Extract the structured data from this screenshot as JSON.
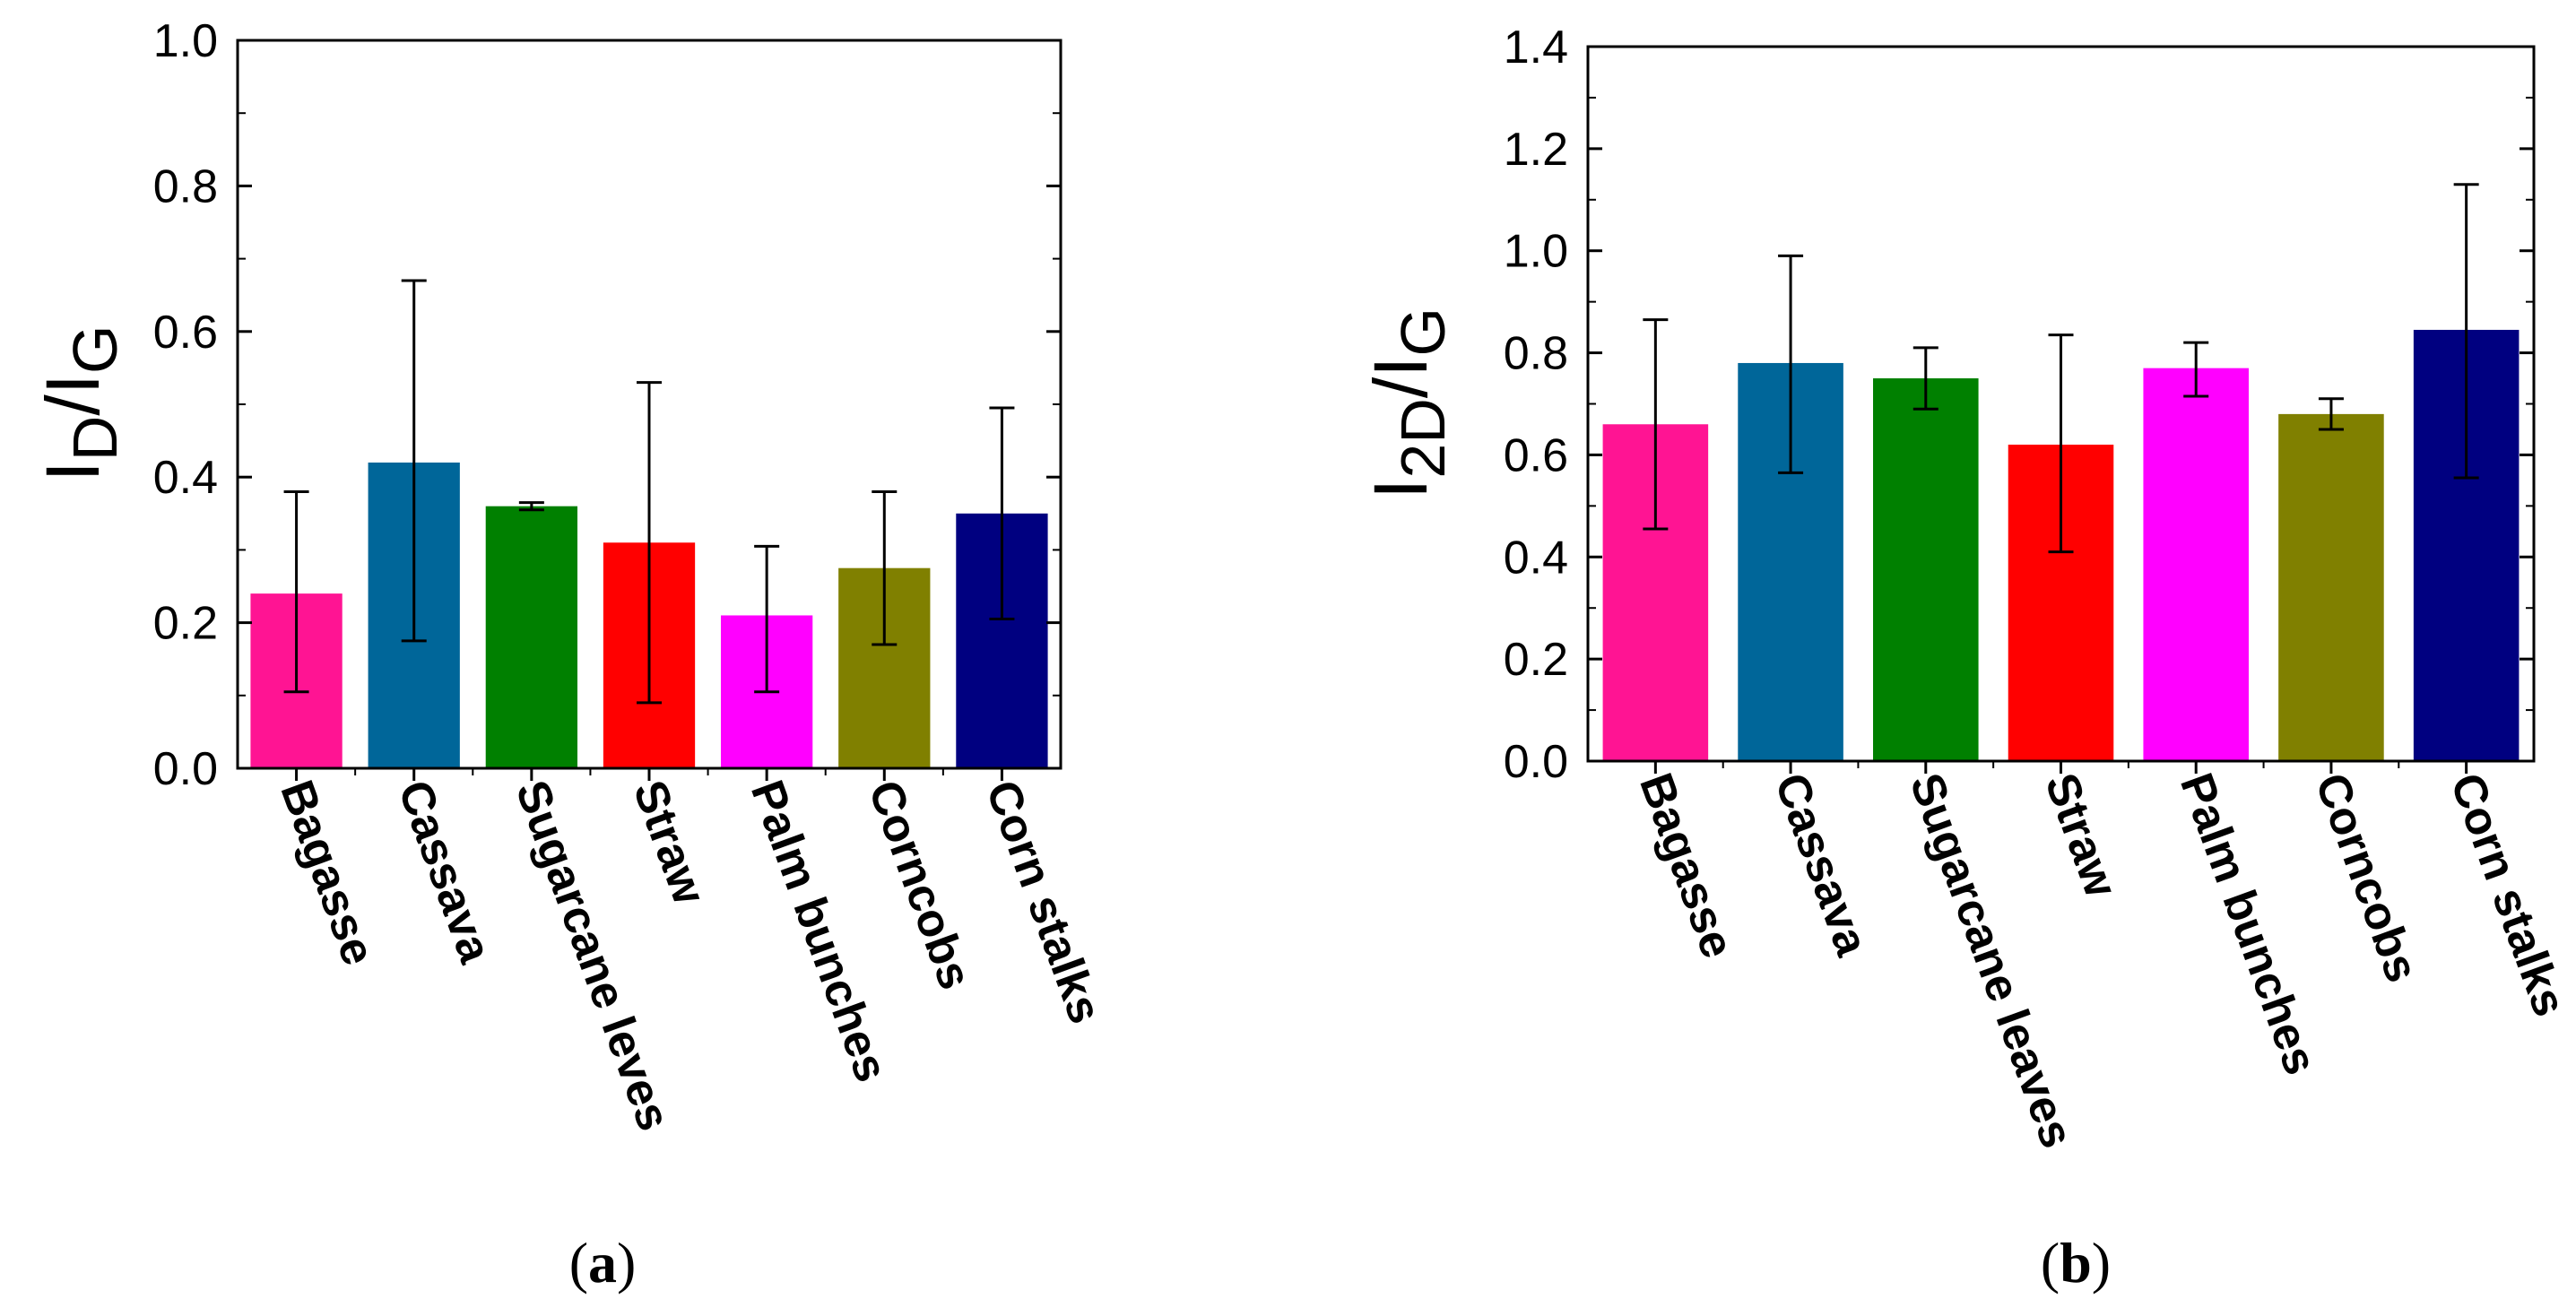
{
  "chart_data": [
    {
      "type": "bar",
      "panel_label": {
        "open": "(",
        "letter": "a",
        "close": ")"
      },
      "ylabel": {
        "main1": "I",
        "sub1": "D",
        "slash": "/",
        "main2": "I",
        "sub2": "G"
      },
      "xlabel": "",
      "ylim": [
        0,
        1.0
      ],
      "yticks": [
        "0.0",
        "0.2",
        "0.4",
        "0.6",
        "0.8",
        "1.0"
      ],
      "ytick_values": [
        0,
        0.2,
        0.4,
        0.6,
        0.8,
        1.0
      ],
      "grid": false,
      "categories": [
        "Bagasse",
        "Cassava",
        "Sugarcane leves",
        "Straw",
        "Palm bunches",
        "Corncobs",
        "Corn stalks"
      ],
      "values": [
        0.24,
        0.42,
        0.36,
        0.31,
        0.21,
        0.275,
        0.35
      ],
      "error_low": [
        0.105,
        0.175,
        0.355,
        0.09,
        0.105,
        0.17,
        0.205
      ],
      "error_high": [
        0.38,
        0.67,
        0.365,
        0.53,
        0.305,
        0.38,
        0.495
      ],
      "colors": [
        "#ff1493",
        "#006699",
        "#008000",
        "#ff0000",
        "#ff00ff",
        "#808000",
        "#000080"
      ]
    },
    {
      "type": "bar",
      "panel_label": {
        "open": "(",
        "letter": "b",
        "close": ")"
      },
      "ylabel": {
        "main1": "I",
        "sub1": "2D",
        "slash": "/",
        "main2": "I",
        "sub2": "G"
      },
      "xlabel": "",
      "ylim": [
        0,
        1.4
      ],
      "yticks": [
        "0.0",
        "0.2",
        "0.4",
        "0.6",
        "0.8",
        "1.0",
        "1.2",
        "1.4"
      ],
      "ytick_values": [
        0,
        0.2,
        0.4,
        0.6,
        0.8,
        1.0,
        1.2,
        1.4
      ],
      "grid": false,
      "categories": [
        "Bagasse",
        "Cassava",
        "Sugarcane leaves",
        "Straw",
        "Palm bunches",
        "Corncobs",
        "Corn stalks"
      ],
      "values": [
        0.66,
        0.78,
        0.75,
        0.62,
        0.77,
        0.68,
        0.845
      ],
      "error_low": [
        0.455,
        0.565,
        0.69,
        0.41,
        0.715,
        0.65,
        0.555
      ],
      "error_high": [
        0.865,
        0.99,
        0.81,
        0.835,
        0.82,
        0.71,
        1.13
      ],
      "colors": [
        "#ff1493",
        "#006699",
        "#008000",
        "#ff0000",
        "#ff00ff",
        "#808000",
        "#000080"
      ]
    }
  ]
}
